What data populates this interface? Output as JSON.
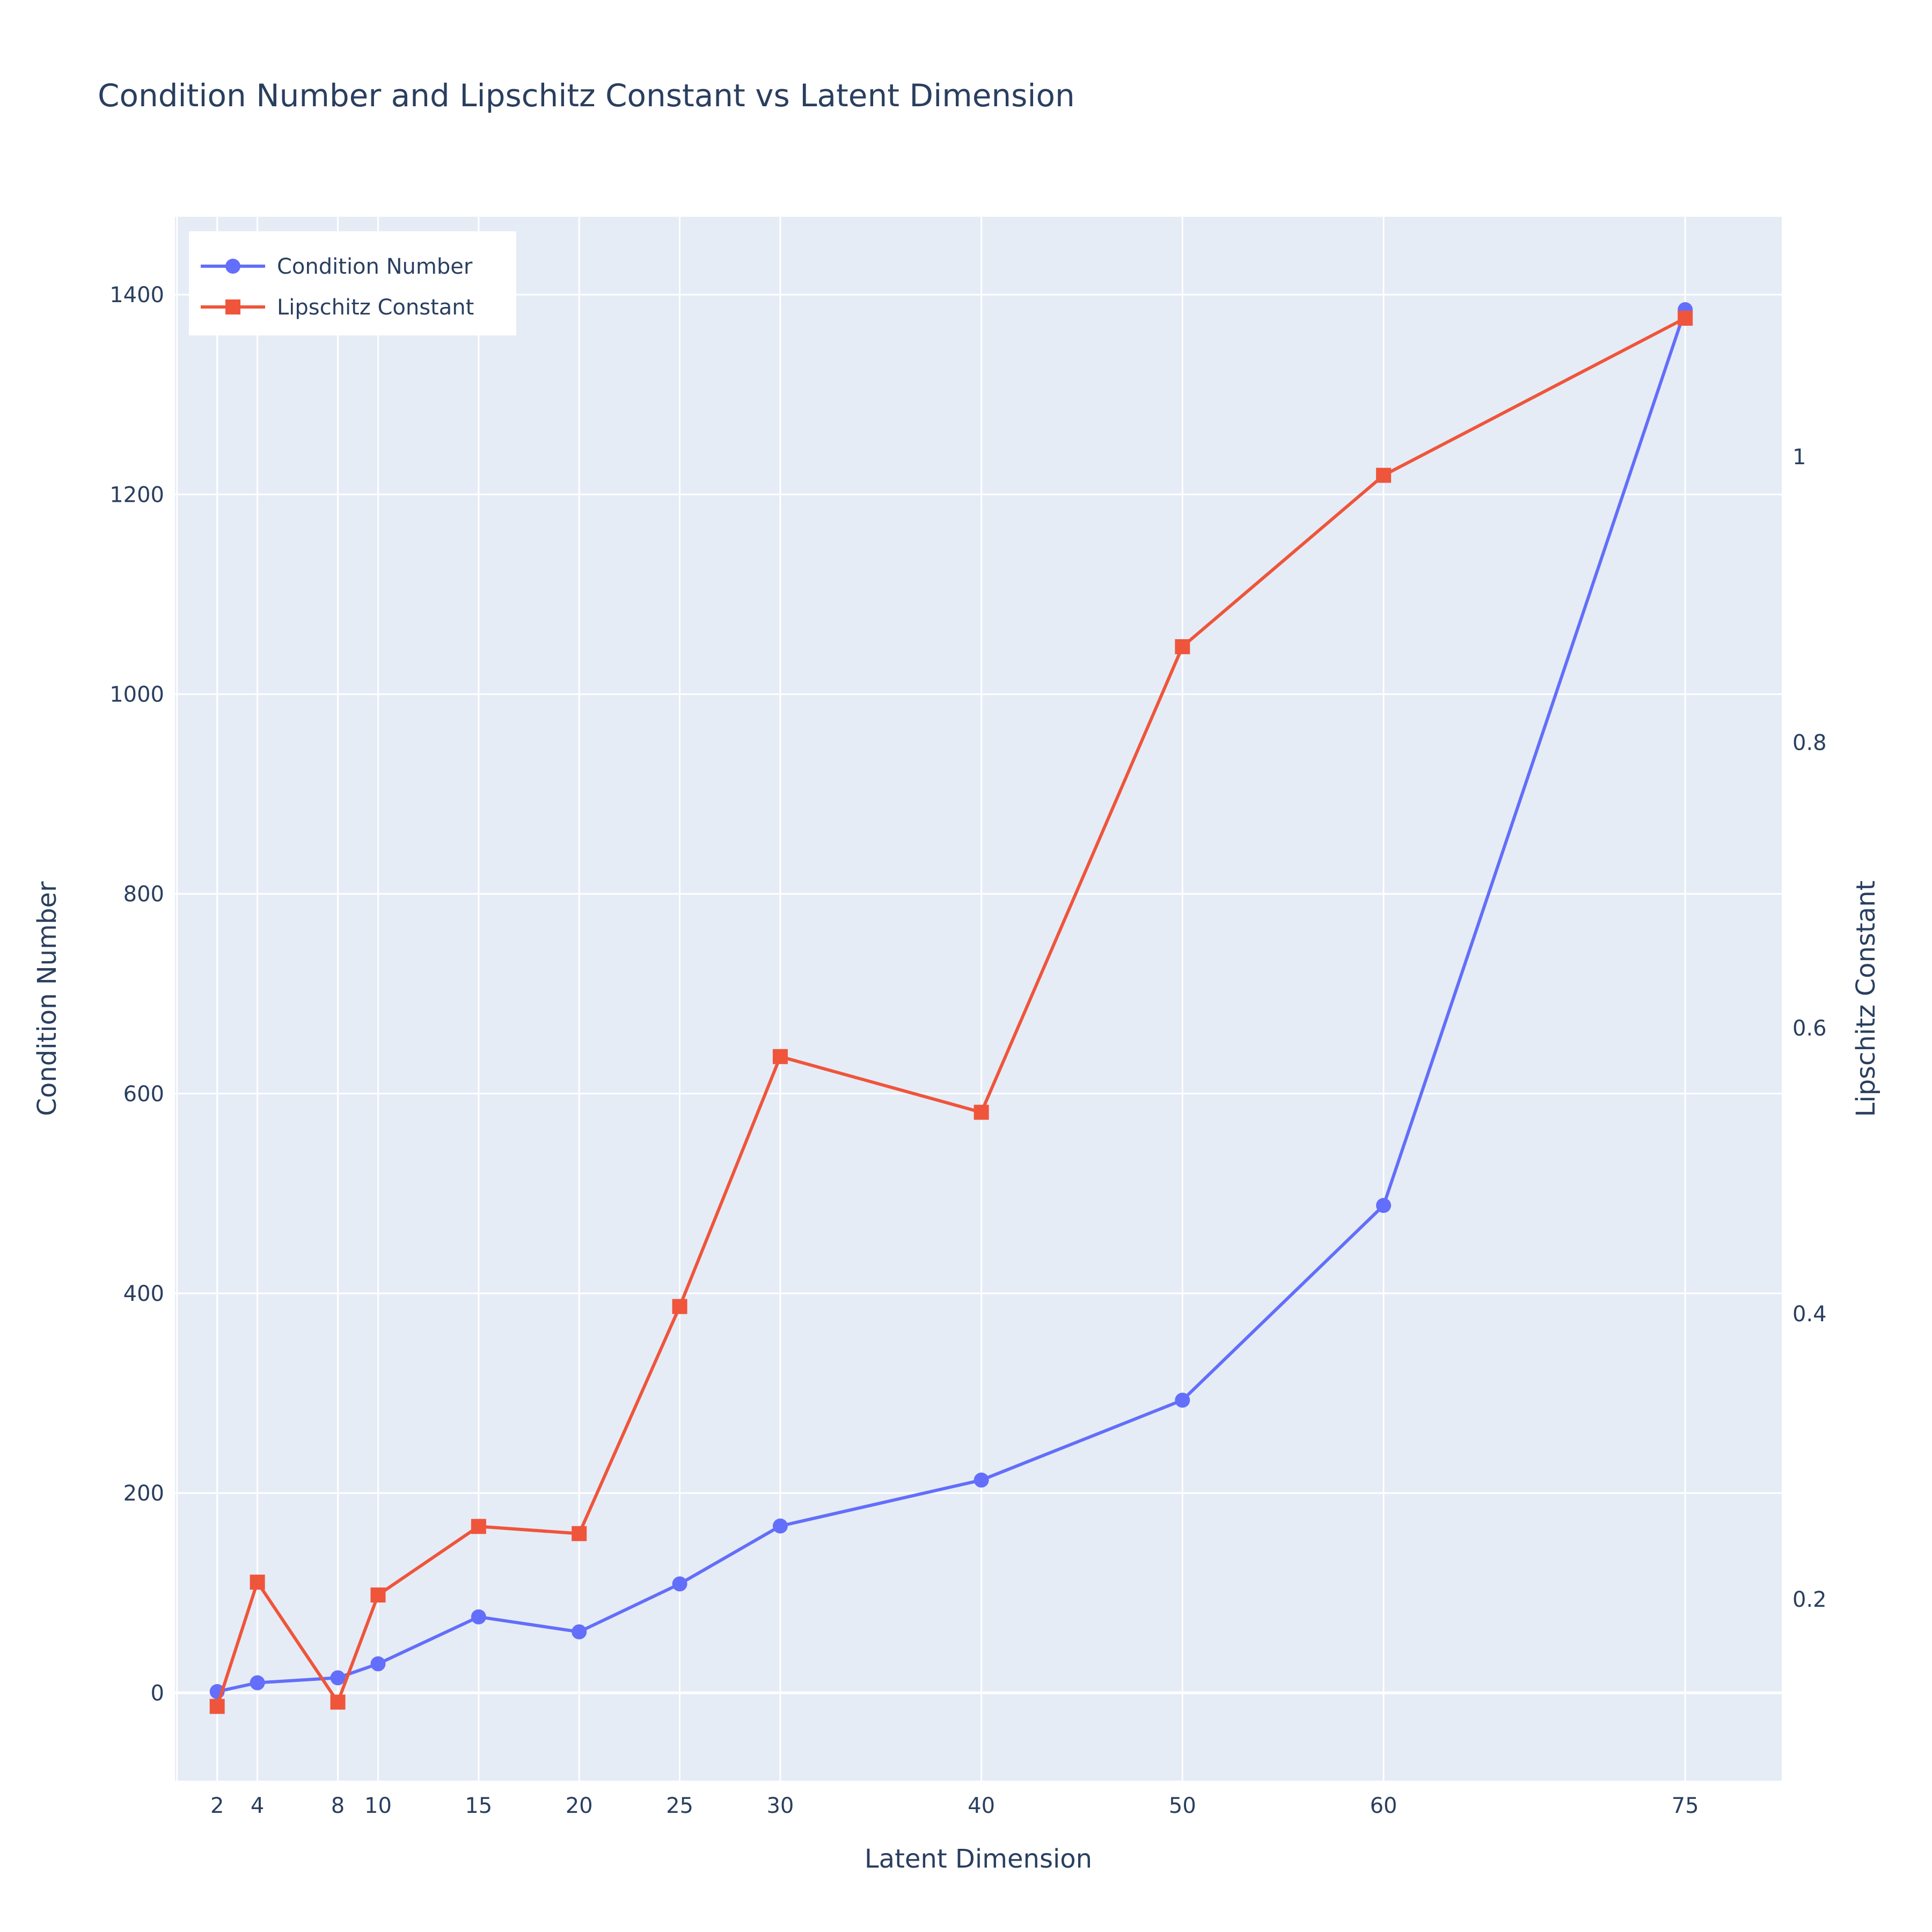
{
  "chart_data": {
    "type": "line",
    "title": "Condition Number and Lipschitz Constant vs Latent Dimension",
    "xlabel": "Latent Dimension",
    "ylabel": "Condition Number",
    "y2label": "Lipschitz Constant",
    "x": [
      2,
      4,
      8,
      10,
      15,
      20,
      25,
      30,
      40,
      50,
      60,
      75
    ],
    "x_tick_labels": [
      "2",
      "4",
      "8",
      "10",
      "15",
      "20",
      "25",
      "30",
      "40",
      "50",
      "60",
      "75"
    ],
    "xlim": [
      -0.1,
      79.8
    ],
    "ylim": [
      -88,
      1478
    ],
    "y_ticks": [
      0,
      200,
      400,
      600,
      800,
      1000,
      1200,
      1400
    ],
    "y_tick_labels": [
      "0",
      "200",
      "400",
      "600",
      "800",
      "1000",
      "1200",
      "1400"
    ],
    "y2lim": [
      0.073,
      1.168
    ],
    "y2_ticks": [
      0.2,
      0.4,
      0.6,
      0.8,
      1.0
    ],
    "y2_tick_labels": [
      "0.2",
      "0.4",
      "0.6",
      "0.8",
      "1"
    ],
    "grid": true,
    "legend_position": "top-left",
    "background": "#e5ecf6",
    "series": [
      {
        "name": "Condition Number",
        "axis": "left",
        "marker": "circle",
        "color": "#636efa",
        "values": [
          1.2,
          10,
          15,
          29,
          76,
          61,
          109,
          167,
          213,
          293,
          488,
          1385
        ]
      },
      {
        "name": "Lipschitz Constant",
        "axis": "right",
        "marker": "square",
        "color": "#ef553b",
        "values": [
          0.125,
          0.212,
          0.128,
          0.203,
          0.251,
          0.246,
          0.405,
          0.58,
          0.541,
          0.867,
          0.987,
          1.097
        ]
      }
    ]
  }
}
